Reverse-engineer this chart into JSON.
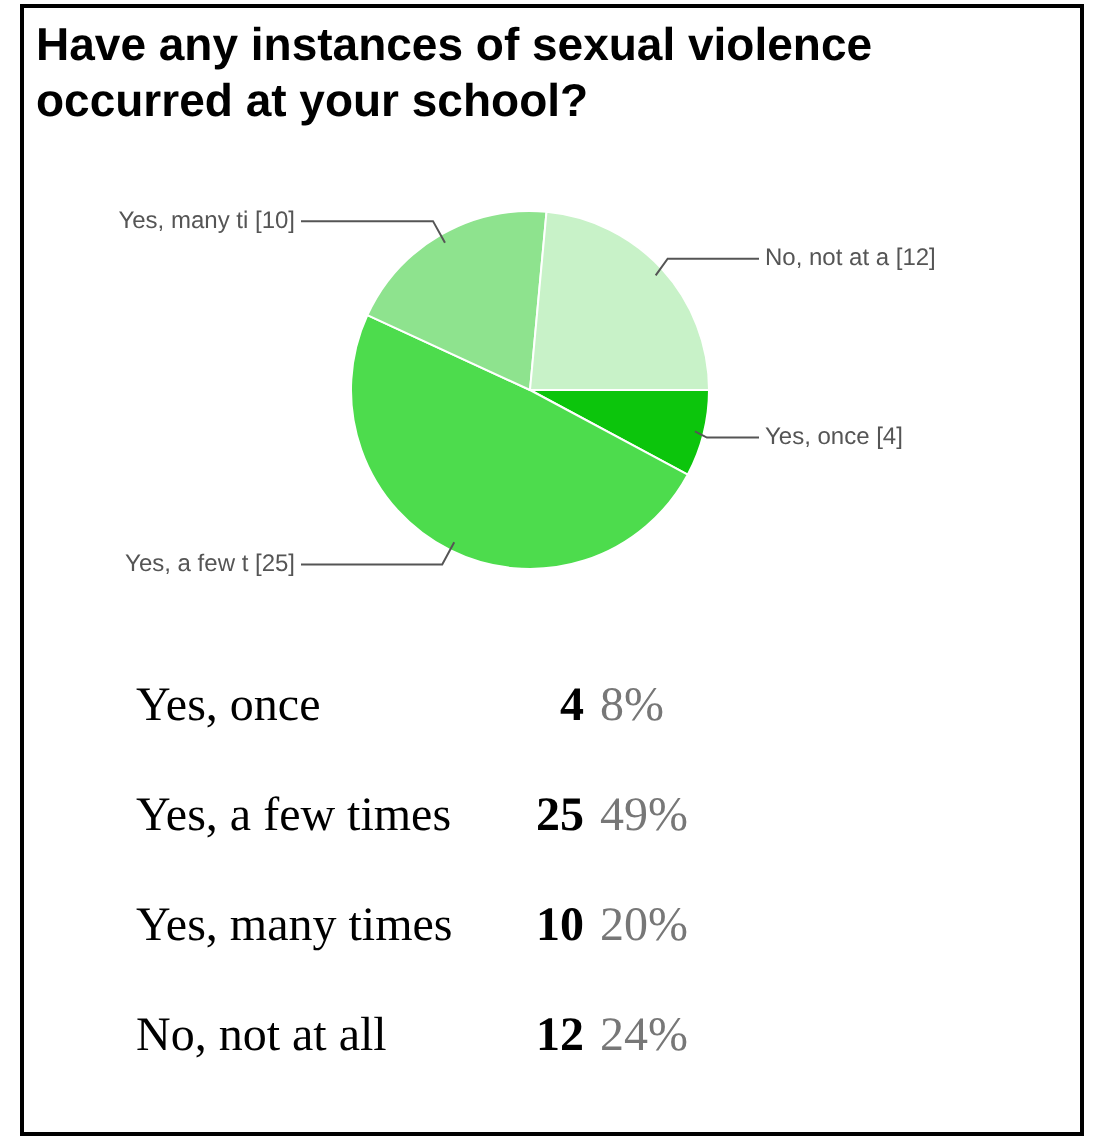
{
  "chart_data": [
    {
      "type": "pie",
      "title": "Have any instances of sexual violence occurred at your school?",
      "categories": [
        "Yes, once",
        "Yes, a few t",
        "Yes, many ti",
        "No, not at a"
      ],
      "values": [
        4,
        25,
        10,
        12
      ],
      "colors": [
        "#0cc50c",
        "#4ddc4d",
        "#8ee38e",
        "#c8f2c8"
      ],
      "value_labels": [
        "[4]",
        "[25]",
        "[10]",
        "[12]"
      ],
      "legend": false
    },
    {
      "type": "other",
      "annotations": [
        "Yes, once",
        "4",
        "8%",
        "Yes, a few times",
        "25",
        "49%",
        "Yes, many times",
        "10",
        "20%",
        "No, not at all",
        "12",
        "24%"
      ]
    }
  ]
}
